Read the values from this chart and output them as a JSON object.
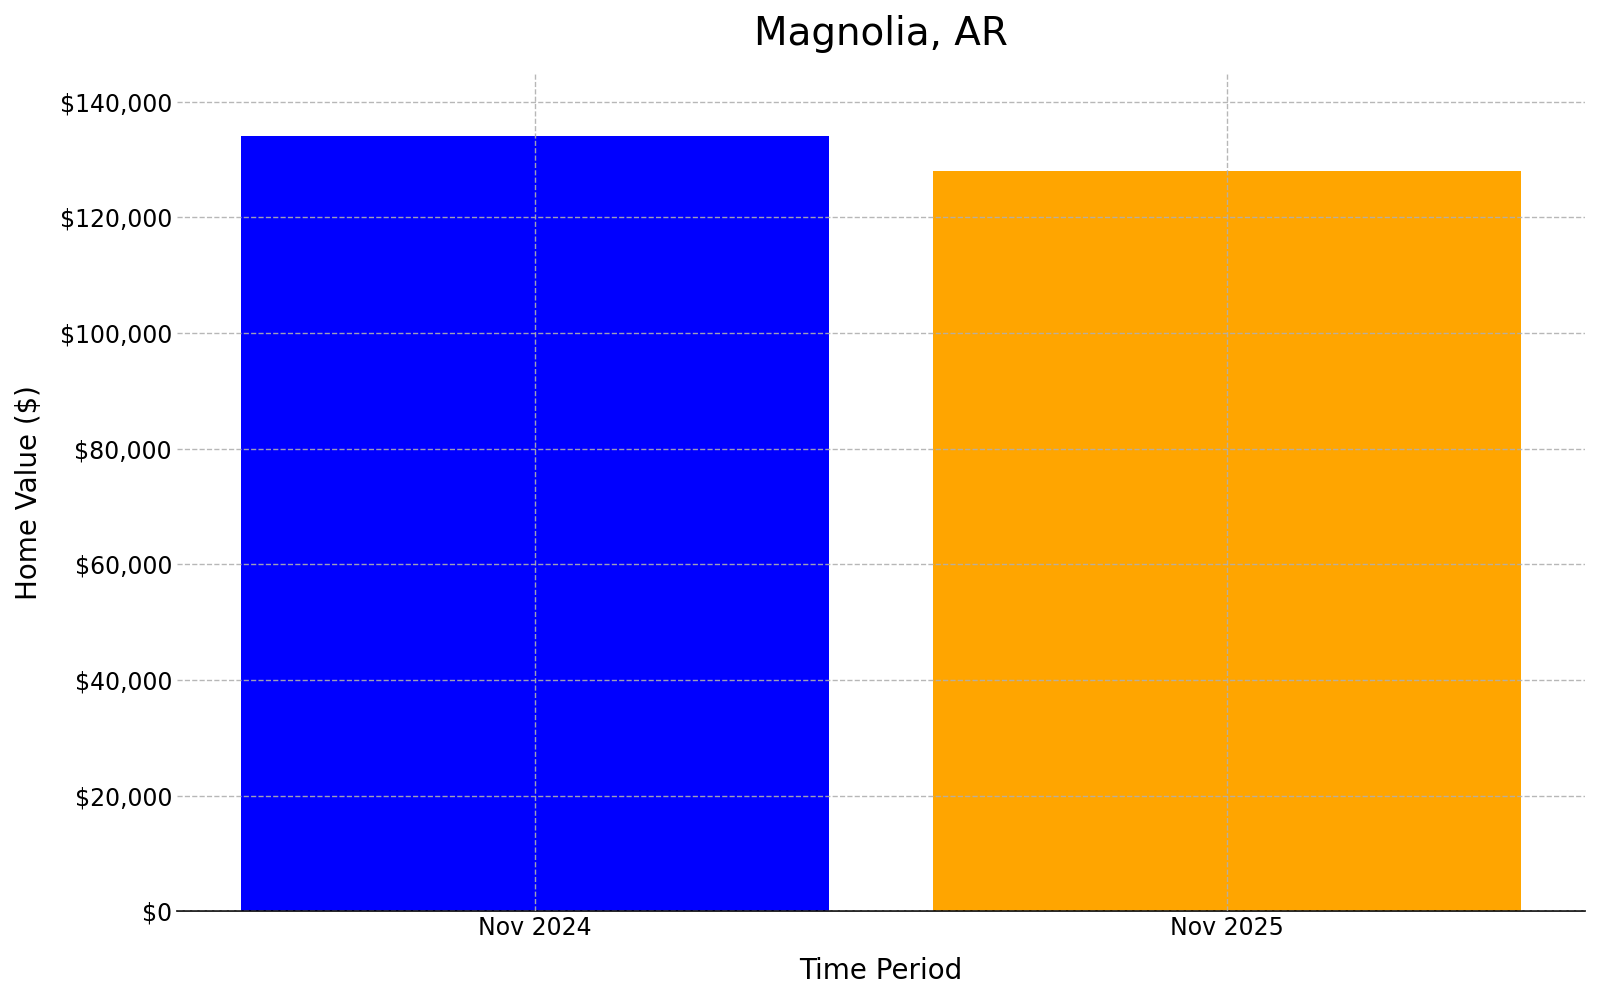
{
  "categories": [
    "Nov 2024",
    "Nov 2025"
  ],
  "values": [
    134000,
    128000
  ],
  "bar_colors": [
    "#0000ff",
    "#ffa500"
  ],
  "title": "Magnolia, AR",
  "xlabel": "Time Period",
  "ylabel": "Home Value ($)",
  "ylim": [
    0,
    145000
  ],
  "ytick_step": 20000,
  "title_fontsize": 28,
  "axis_label_fontsize": 20,
  "tick_fontsize": 17,
  "background_color": "#ffffff",
  "grid_color": "#b0b0b0",
  "bar_width": 0.85
}
